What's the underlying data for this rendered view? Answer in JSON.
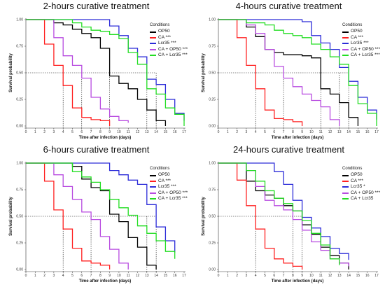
{
  "chart_data": [
    {
      "type": "line",
      "title": "2-hours curative treatment",
      "xlabel": "Time after infection (days)",
      "ylabel": "Survival probability",
      "xlim": [
        0,
        17
      ],
      "ylim": [
        0,
        1
      ],
      "x_ticks": [
        0,
        1,
        2,
        3,
        4,
        5,
        6,
        7,
        8,
        9,
        10,
        11,
        12,
        13,
        14,
        15,
        16,
        17
      ],
      "y_ticks": [
        "0.00",
        "0.25",
        "0.50",
        "0.75",
        "1.00"
      ],
      "median_x": [
        4,
        6,
        9,
        13,
        14
      ],
      "legend_title": "Conditions",
      "legend_position": "top-right",
      "series": [
        {
          "name": "OP50",
          "color": "#000000",
          "x": [
            0,
            3,
            4,
            5,
            6,
            7,
            8,
            9,
            10,
            11,
            12,
            13,
            14,
            15
          ],
          "y": [
            1,
            0.97,
            0.95,
            0.91,
            0.87,
            0.83,
            0.73,
            0.47,
            0.4,
            0.35,
            0.25,
            0.15,
            0.05,
            0
          ]
        },
        {
          "name": "CA ***",
          "color": "#ff2020",
          "x": [
            0,
            2,
            3,
            4,
            5,
            6,
            7,
            8,
            9
          ],
          "y": [
            1,
            0.77,
            0.57,
            0.38,
            0.17,
            0.08,
            0.06,
            0.05,
            0
          ]
        },
        {
          "name": "Lcr35 ***",
          "color": "#2b2bd8",
          "x": [
            0,
            6,
            9,
            10,
            11,
            12,
            13,
            14,
            15,
            16,
            17
          ],
          "y": [
            1,
            1,
            0.94,
            0.85,
            0.73,
            0.65,
            0.44,
            0.39,
            0.25,
            0.12,
            0.05
          ]
        },
        {
          "name": "CA + OP50 ***",
          "color": "#b84be0",
          "x": [
            0,
            3,
            4,
            5,
            6,
            7,
            8,
            9,
            10,
            11
          ],
          "y": [
            1,
            0.83,
            0.66,
            0.57,
            0.45,
            0.27,
            0.16,
            0.09,
            0.05,
            0.03
          ]
        },
        {
          "name": "CA + Lcr35 ***",
          "color": "#22dd22",
          "x": [
            0,
            5,
            6,
            7,
            8,
            9,
            10,
            11,
            12,
            13,
            14,
            15,
            16,
            17
          ],
          "y": [
            1,
            0.97,
            0.93,
            0.9,
            0.89,
            0.86,
            0.82,
            0.69,
            0.58,
            0.35,
            0.3,
            0.17,
            0.11,
            0
          ]
        }
      ]
    },
    {
      "type": "line",
      "title": "4-hours curative treatment",
      "xlabel": "Time after infection (days)",
      "ylabel": "Survival probability",
      "xlim": [
        0,
        17
      ],
      "ylim": [
        0,
        1
      ],
      "x_ticks": [
        0,
        1,
        2,
        3,
        4,
        5,
        6,
        7,
        8,
        9,
        10,
        11,
        12,
        13,
        14,
        15,
        16,
        17
      ],
      "y_ticks": [
        "0.00",
        "0.25",
        "0.50",
        "0.75",
        "1.00"
      ],
      "median_x": [
        4,
        7,
        11,
        13,
        14
      ],
      "legend_title": "Conditions",
      "legend_position": "top-right",
      "series": [
        {
          "name": "OP50",
          "color": "#000000",
          "x": [
            0,
            3,
            4,
            5,
            6,
            7,
            8,
            9,
            10,
            11,
            12,
            13,
            14,
            15
          ],
          "y": [
            1,
            0.93,
            0.84,
            0.72,
            0.69,
            0.67,
            0.67,
            0.66,
            0.64,
            0.35,
            0.3,
            0.22,
            0.08,
            0
          ]
        },
        {
          "name": "CA ***",
          "color": "#ff2020",
          "x": [
            0,
            2,
            3,
            4,
            5,
            6,
            7,
            8,
            9
          ],
          "y": [
            1,
            0.83,
            0.57,
            0.35,
            0.15,
            0.07,
            0.06,
            0.04,
            0
          ]
        },
        {
          "name": "Lcr35 ***",
          "color": "#2b2bd8",
          "x": [
            0,
            9,
            10,
            11,
            12,
            13,
            14,
            15,
            16,
            17
          ],
          "y": [
            1,
            0.98,
            0.85,
            0.78,
            0.72,
            0.55,
            0.42,
            0.27,
            0.15,
            0.06
          ]
        },
        {
          "name": "CA + OP50 ***",
          "color": "#b84be0",
          "x": [
            0,
            3,
            4,
            5,
            6,
            7,
            8,
            9,
            10,
            11,
            12,
            13
          ],
          "y": [
            1,
            0.95,
            0.87,
            0.72,
            0.56,
            0.45,
            0.37,
            0.3,
            0.24,
            0.18,
            0.06,
            0
          ]
        },
        {
          "name": "CA + Lcr35 ***",
          "color": "#22dd22",
          "x": [
            0,
            3,
            4,
            5,
            6,
            7,
            8,
            9,
            10,
            11,
            12,
            13,
            14,
            15,
            16,
            17
          ],
          "y": [
            1,
            0.97,
            0.97,
            0.95,
            0.9,
            0.87,
            0.85,
            0.83,
            0.77,
            0.72,
            0.65,
            0.58,
            0.38,
            0.21,
            0.12,
            0
          ]
        }
      ]
    },
    {
      "type": "line",
      "title": "6-hours curative treatment",
      "xlabel": "Time after infection (days)",
      "ylabel": "Survival probability",
      "xlim": [
        0,
        17
      ],
      "ylim": [
        0,
        1
      ],
      "x_ticks": [
        0,
        1,
        2,
        3,
        4,
        5,
        6,
        7,
        8,
        9,
        10,
        11,
        12,
        13,
        14,
        15,
        16,
        17
      ],
      "y_ticks": [
        "0.00",
        "0.25",
        "0.50",
        "0.75",
        "1.00"
      ],
      "median_x": [
        4,
        7,
        13,
        14
      ],
      "legend_title": "Conditions",
      "legend_position": "top-right",
      "series": [
        {
          "name": "OP50",
          "color": "#000000",
          "x": [
            0,
            5,
            6,
            7,
            8,
            9,
            10,
            11,
            12,
            13,
            14
          ],
          "y": [
            1,
            0.97,
            0.85,
            0.77,
            0.74,
            0.52,
            0.45,
            0.3,
            0.21,
            0.04,
            0
          ]
        },
        {
          "name": "CA ***",
          "color": "#ff2020",
          "x": [
            0,
            2,
            3,
            4,
            5,
            6,
            7,
            8,
            9
          ],
          "y": [
            1,
            0.83,
            0.56,
            0.38,
            0.2,
            0.08,
            0.06,
            0.04,
            0
          ]
        },
        {
          "name": "Lcr35 ***",
          "color": "#2b2bd8",
          "x": [
            0,
            9,
            10,
            11,
            12,
            13,
            14,
            15,
            16
          ],
          "y": [
            1,
            0.93,
            0.89,
            0.84,
            0.8,
            0.61,
            0.4,
            0.27,
            0.16
          ]
        },
        {
          "name": "CA + OP50 ***",
          "color": "#b84be0",
          "x": [
            0,
            3,
            4,
            5,
            6,
            7,
            8,
            9,
            10,
            11
          ],
          "y": [
            1,
            0.89,
            0.78,
            0.66,
            0.54,
            0.47,
            0.31,
            0.19,
            0.06,
            0
          ]
        },
        {
          "name": "CA + Lcr35 ***",
          "color": "#22dd22",
          "x": [
            0,
            4,
            5,
            6,
            7,
            8,
            9,
            10,
            11,
            12,
            13,
            14,
            15,
            16
          ],
          "y": [
            1,
            1,
            0.92,
            0.87,
            0.82,
            0.75,
            0.66,
            0.58,
            0.51,
            0.41,
            0.34,
            0.27,
            0.17,
            0.1
          ]
        }
      ]
    },
    {
      "type": "line",
      "title": "24-hours curative treatment",
      "xlabel": "Time after infection (days)",
      "ylabel": "Survival probability",
      "xlim": [
        0,
        17
      ],
      "ylim": [
        0,
        1
      ],
      "x_ticks": [
        0,
        1,
        2,
        3,
        4,
        5,
        6,
        7,
        8,
        9,
        10,
        11,
        12,
        13,
        14,
        15,
        16,
        17
      ],
      "y_ticks": [
        "0.00",
        "0.25",
        "0.50",
        "0.75",
        "1.00"
      ],
      "median_x": [
        4,
        8,
        9
      ],
      "legend_title": "Conditions",
      "legend_position": "top-right",
      "series": [
        {
          "name": "OP50",
          "color": "#000000",
          "x": [
            0,
            3,
            4,
            5,
            6,
            7,
            8,
            9,
            10,
            11,
            12,
            13,
            14
          ],
          "y": [
            1,
            0.83,
            0.74,
            0.7,
            0.67,
            0.6,
            0.55,
            0.42,
            0.33,
            0.21,
            0.13,
            0.06,
            0
          ]
        },
        {
          "name": "CA ***",
          "color": "#ff2020",
          "x": [
            0,
            2,
            3,
            4,
            5,
            6,
            7,
            8,
            9
          ],
          "y": [
            1,
            0.84,
            0.6,
            0.38,
            0.2,
            0.1,
            0.06,
            0.03,
            0
          ]
        },
        {
          "name": "Lcr35 *",
          "color": "#2b2bd8",
          "x": [
            0,
            5,
            6,
            7,
            8,
            9,
            10,
            11,
            12,
            13,
            14
          ],
          "y": [
            1,
            1,
            0.92,
            0.8,
            0.65,
            0.49,
            0.39,
            0.31,
            0.2,
            0.15,
            0.09
          ]
        },
        {
          "name": "CA + OP50 ***",
          "color": "#b84be0",
          "x": [
            0,
            3,
            4,
            5,
            6,
            7,
            8,
            9,
            10,
            11,
            12,
            13,
            14
          ],
          "y": [
            1,
            0.93,
            0.78,
            0.65,
            0.6,
            0.56,
            0.47,
            0.37,
            0.26,
            0.18,
            0.1,
            0.06,
            0.03
          ]
        },
        {
          "name": "CA + Lcr35",
          "color": "#22dd22",
          "x": [
            0,
            3,
            4,
            5,
            6,
            7,
            8,
            9,
            10,
            11,
            12,
            13
          ],
          "y": [
            1,
            0.93,
            0.83,
            0.74,
            0.67,
            0.62,
            0.55,
            0.46,
            0.34,
            0.23,
            0.1,
            0.04
          ]
        }
      ]
    }
  ]
}
